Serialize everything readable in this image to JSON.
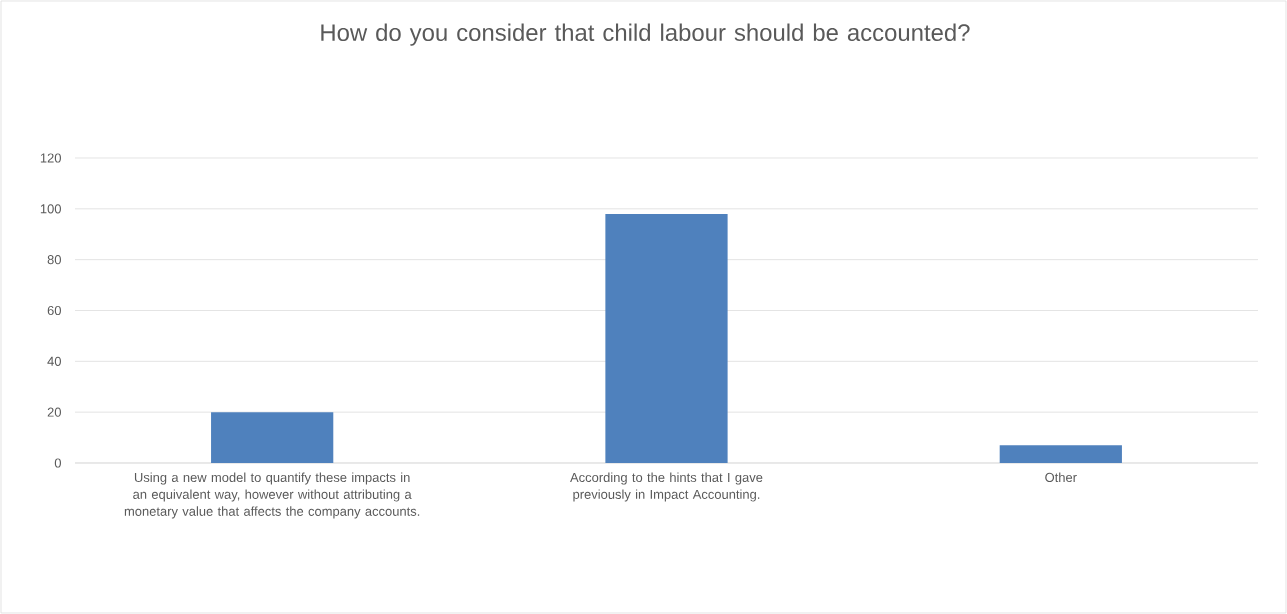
{
  "chart_data": {
    "type": "bar",
    "title": "How do you consider that child labour should be accounted?",
    "categories": [
      "Using a new model to quantify these impacts in an equivalent way, however without attributing a monetary value that affects the company accounts.",
      "According to the hints that I gave previously in Impact Accounting.",
      "Other"
    ],
    "values": [
      20,
      98,
      7
    ],
    "color": "#4f81bd",
    "ylim": [
      0,
      120
    ],
    "yticks": [
      0,
      20,
      40,
      60,
      80,
      100,
      120
    ],
    "grid": "y"
  }
}
